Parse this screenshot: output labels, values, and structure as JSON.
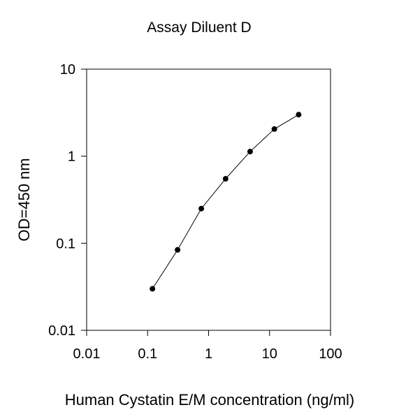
{
  "chart_data": {
    "type": "scatter",
    "title": "Assay Diluent D",
    "xlabel": "Human Cystatin E/M concentration (ng/ml)",
    "ylabel": "OD=450 nm",
    "xscale": "log",
    "yscale": "log",
    "xlim": [
      0.01,
      100
    ],
    "ylim": [
      0.01,
      10
    ],
    "xticks": [
      {
        "value": 0.01,
        "label": "0.01"
      },
      {
        "value": 0.1,
        "label": "0.1"
      },
      {
        "value": 1,
        "label": "1"
      },
      {
        "value": 10,
        "label": "10"
      },
      {
        "value": 100,
        "label": "100"
      }
    ],
    "yticks": [
      {
        "value": 0.01,
        "label": "0.01"
      },
      {
        "value": 0.1,
        "label": "0.1"
      },
      {
        "value": 1,
        "label": "1"
      },
      {
        "value": 10,
        "label": "10"
      }
    ],
    "grid": false,
    "legend": "none",
    "series": [
      {
        "x": [
          0.12,
          0.31,
          0.76,
          1.9,
          4.8,
          12,
          30
        ],
        "y": [
          0.03,
          0.084,
          0.25,
          0.55,
          1.13,
          2.05,
          3.0
        ],
        "connected": true,
        "marker": "circle",
        "color": "#000000"
      }
    ]
  }
}
